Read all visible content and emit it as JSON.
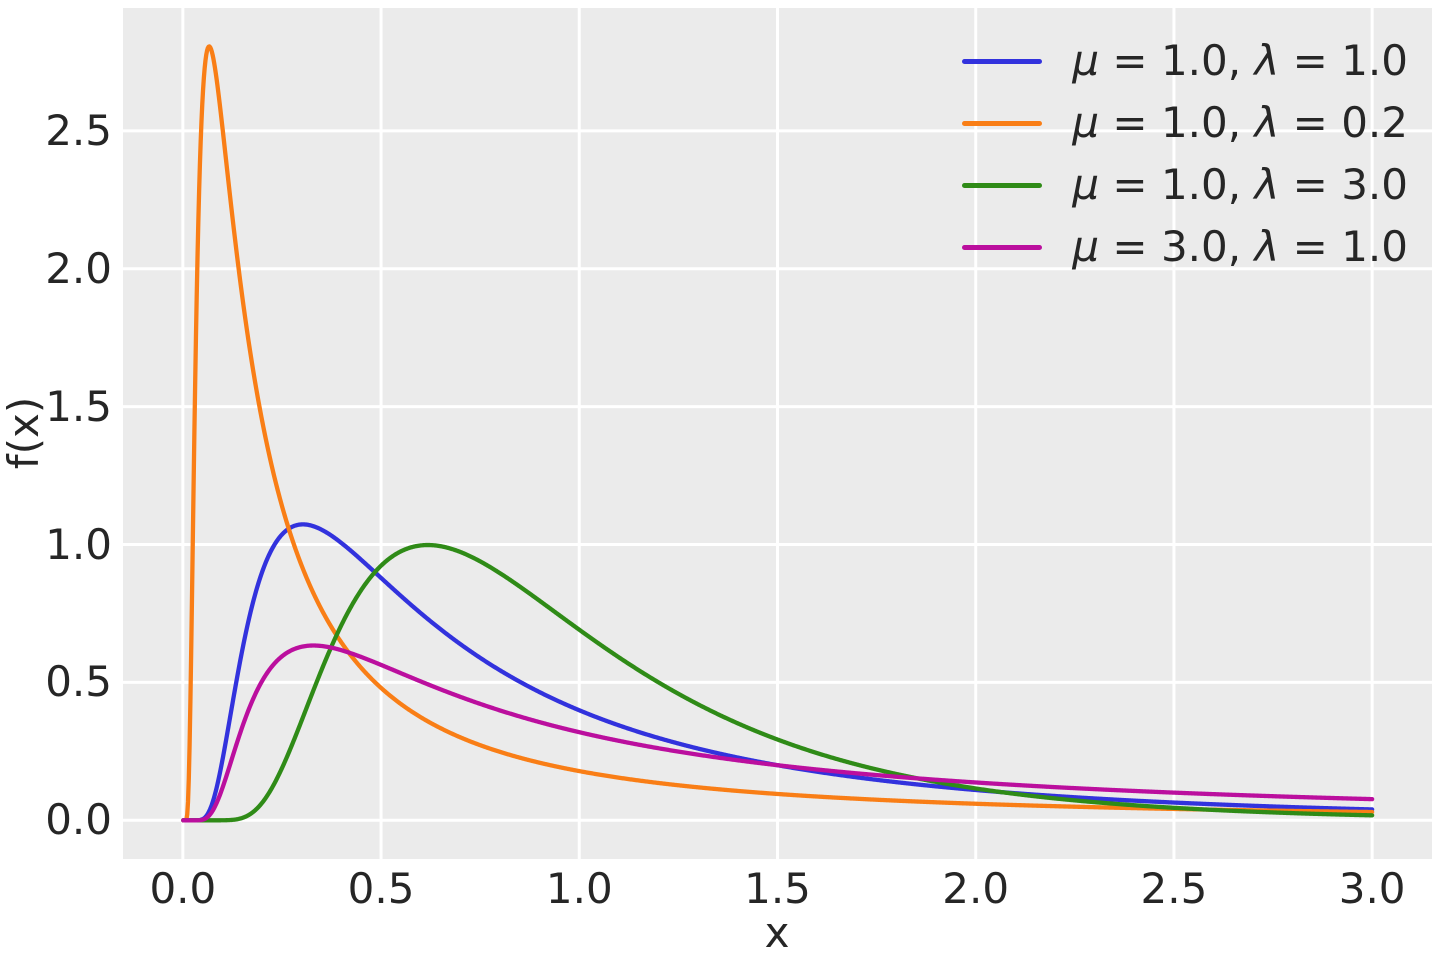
{
  "chart_data": {
    "type": "line",
    "title": "",
    "xlabel": "x",
    "ylabel": "f(x)",
    "xlim": [
      -0.151,
      3.151
    ],
    "ylim": [
      -0.1403,
      2.9453
    ],
    "x_ticks": [
      0.0,
      0.5,
      1.0,
      1.5,
      2.0,
      2.5,
      3.0
    ],
    "x_tick_labels": [
      "0.0",
      "0.5",
      "1.0",
      "1.5",
      "2.0",
      "2.5",
      "3.0"
    ],
    "y_ticks": [
      0.0,
      0.5,
      1.0,
      1.5,
      2.0,
      2.5
    ],
    "y_tick_labels": [
      "0.0",
      "0.5",
      "1.0",
      "1.5",
      "2.0",
      "2.5"
    ],
    "grid": true,
    "legend_position": "upper right",
    "plot_background": "#ebebeb",
    "grid_color": "#ffffff",
    "text_color": "#262626",
    "distribution": "inverse_gaussian_pdf",
    "formula": "f(x) = sqrt(lambda/(2*pi*x^3)) * exp(-lambda*(x-mu)^2/(2*mu^2*x))",
    "x_range": [
      0.001,
      3.0
    ],
    "samples": 1500,
    "line_width": 4.3,
    "series": [
      {
        "label": "μ = 1.0, λ = 1.0",
        "mu": 1.0,
        "lambda": 1.0,
        "color": "#3232dd",
        "peak_x": 0.3,
        "peak_y": 1.07,
        "value_at_x3": 0.039
      },
      {
        "label": "μ = 1.0, λ = 0.2",
        "mu": 1.0,
        "lambda": 0.2,
        "color": "#f97e16",
        "peak_x": 0.066,
        "peak_y": 2.8,
        "value_at_x3": 0.03
      },
      {
        "label": "μ = 1.0, λ = 3.0",
        "mu": 1.0,
        "lambda": 3.0,
        "color": "#2f8b17",
        "peak_x": 0.61,
        "peak_y": 0.99,
        "value_at_x3": 0.018
      },
      {
        "label": "μ = 3.0, λ = 1.0",
        "mu": 3.0,
        "lambda": 1.0,
        "color": "#bb0f9e",
        "peak_x": 0.33,
        "peak_y": 0.63,
        "value_at_x3": 0.077
      }
    ]
  }
}
